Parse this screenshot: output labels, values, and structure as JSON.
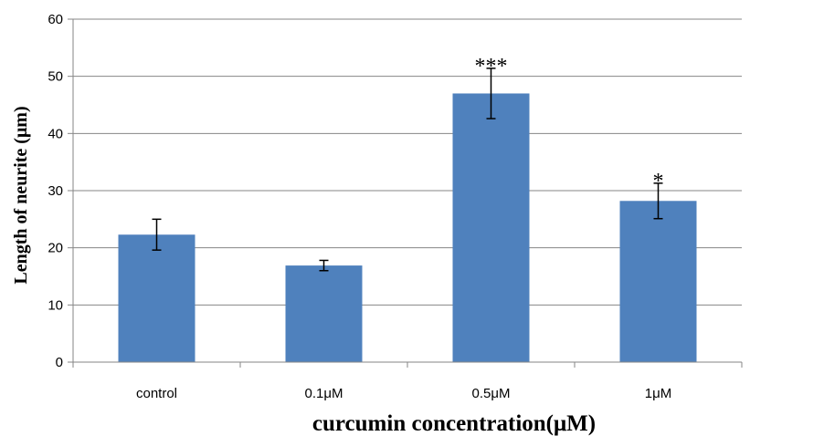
{
  "chart_data": {
    "type": "bar",
    "title": "",
    "xlabel": "curcumin concentration(μM)",
    "ylabel": "Length of neurite (μm)",
    "ylim": [
      0,
      60
    ],
    "yticks": [
      "0",
      "10",
      "20",
      "30",
      "40",
      "50",
      "60"
    ],
    "categories": [
      "control",
      "0.1μM",
      "0.5μM",
      "1μM"
    ],
    "values": [
      22.3,
      16.9,
      47.0,
      28.2
    ],
    "error_bars": [
      2.7,
      0.9,
      4.4,
      3.1
    ],
    "significance": [
      "",
      "",
      "***",
      "*"
    ],
    "bar_color": "#4F81BD",
    "grid": "horizontal",
    "legend": "none"
  }
}
